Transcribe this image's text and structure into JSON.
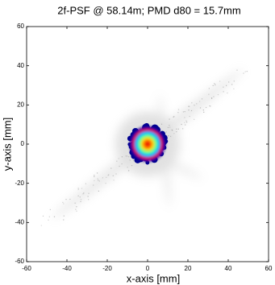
{
  "chart_data": {
    "type": "image",
    "title": "2f-PSF @ 58.14m; PMD d80 = 15.7mm",
    "x_label": "x-axis [mm]",
    "y_label": "y-axis [mm]",
    "xlim": [
      -60,
      60
    ],
    "ylim": [
      -60,
      60
    ],
    "xticks": [
      -60,
      -40,
      -20,
      0,
      20,
      40,
      60
    ],
    "yticks": [
      -60,
      -40,
      -20,
      0,
      20,
      40,
      60
    ]
  }
}
